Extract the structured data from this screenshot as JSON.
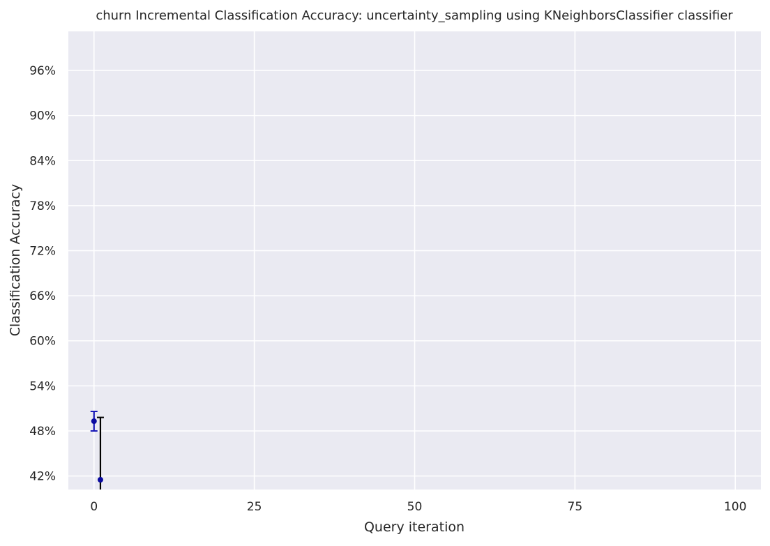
{
  "chart_data": {
    "type": "scatter",
    "title": "churn Incremental Classification Accuracy: uncertainty_sampling using KNeighborsClassifier classifier",
    "xlabel": "Query iteration",
    "ylabel": "Classification Accuracy",
    "xlim": [
      -4,
      104
    ],
    "ylim": [
      40.2,
      101.2
    ],
    "x_ticks": [
      0,
      25,
      50,
      75,
      100
    ],
    "x_tick_labels": [
      "0",
      "25",
      "50",
      "75",
      "100"
    ],
    "y_ticks": [
      42,
      48,
      54,
      60,
      66,
      72,
      78,
      84,
      90,
      96
    ],
    "y_tick_labels": [
      "42%",
      "48%",
      "54%",
      "60%",
      "66%",
      "72%",
      "78%",
      "84%",
      "90%",
      "96%"
    ],
    "grid": true,
    "legend": false,
    "colors": {
      "background": "#eaeaf2",
      "grid": "#ffffff",
      "point": "#0a0aa0",
      "errorbar_first": "#1a1ab8",
      "errorbar_other": "#000000"
    },
    "series": [
      {
        "x": [
          0,
          1
        ],
        "y": [
          49.3,
          41.5
        ],
        "err_low": [
          48.0,
          33.0
        ],
        "err_high": [
          50.6,
          49.8
        ]
      }
    ]
  }
}
